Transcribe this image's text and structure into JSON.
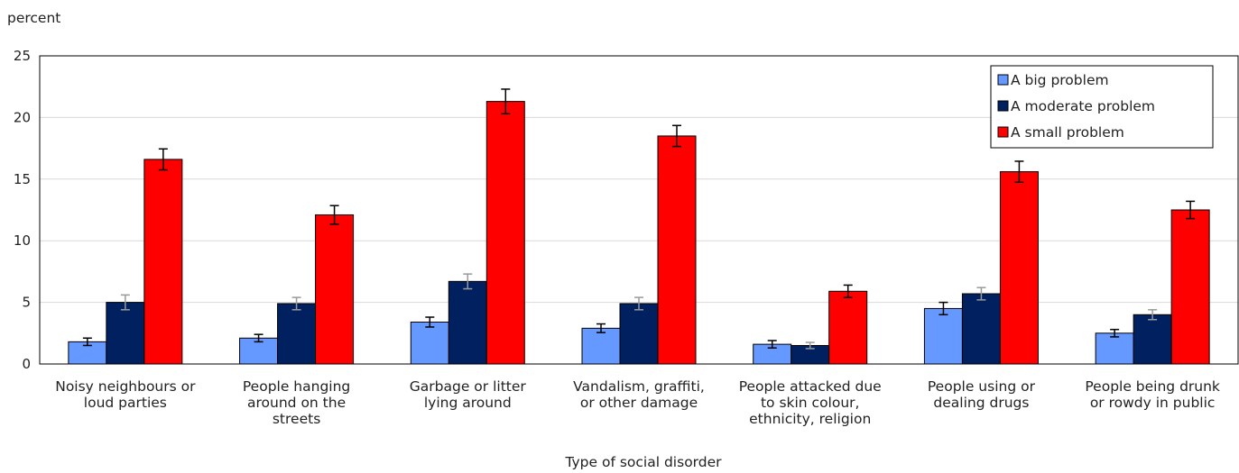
{
  "chart_data": {
    "type": "bar",
    "title": "",
    "ylabel": "percent",
    "xlabel": "Type of social disorder",
    "ylim": [
      0,
      25
    ],
    "yticks": [
      0,
      5,
      10,
      15,
      20,
      25
    ],
    "grid": true,
    "legend_position": "top-right",
    "categories": [
      [
        "Noisy neighbours or",
        "loud parties"
      ],
      [
        "People hanging",
        "around on the",
        "streets"
      ],
      [
        "Garbage or litter",
        "lying around"
      ],
      [
        "Vandalism, graffiti,",
        "or other damage"
      ],
      [
        "People attacked due",
        "to skin colour,",
        "ethnicity, religion"
      ],
      [
        "People using or",
        "dealing drugs"
      ],
      [
        "People being drunk",
        "or rowdy in public"
      ]
    ],
    "series": [
      {
        "name": "A big problem",
        "color": "#6699FF",
        "error_color": "#000000",
        "values": [
          1.8,
          2.1,
          3.4,
          2.9,
          1.6,
          4.5,
          2.5
        ],
        "errors": [
          0.3,
          0.3,
          0.4,
          0.35,
          0.3,
          0.5,
          0.3
        ]
      },
      {
        "name": "A moderate problem",
        "color": "#002060",
        "error_color": "#999999",
        "values": [
          5.0,
          4.9,
          6.7,
          4.9,
          1.5,
          5.7,
          4.0
        ],
        "errors": [
          0.6,
          0.5,
          0.6,
          0.5,
          0.25,
          0.5,
          0.4
        ]
      },
      {
        "name": "A small problem",
        "color": "#FF0000",
        "error_color": "#000000",
        "values": [
          16.6,
          12.1,
          21.3,
          18.5,
          5.9,
          15.6,
          12.5
        ],
        "errors": [
          0.85,
          0.75,
          1.0,
          0.85,
          0.5,
          0.85,
          0.7
        ]
      }
    ]
  }
}
